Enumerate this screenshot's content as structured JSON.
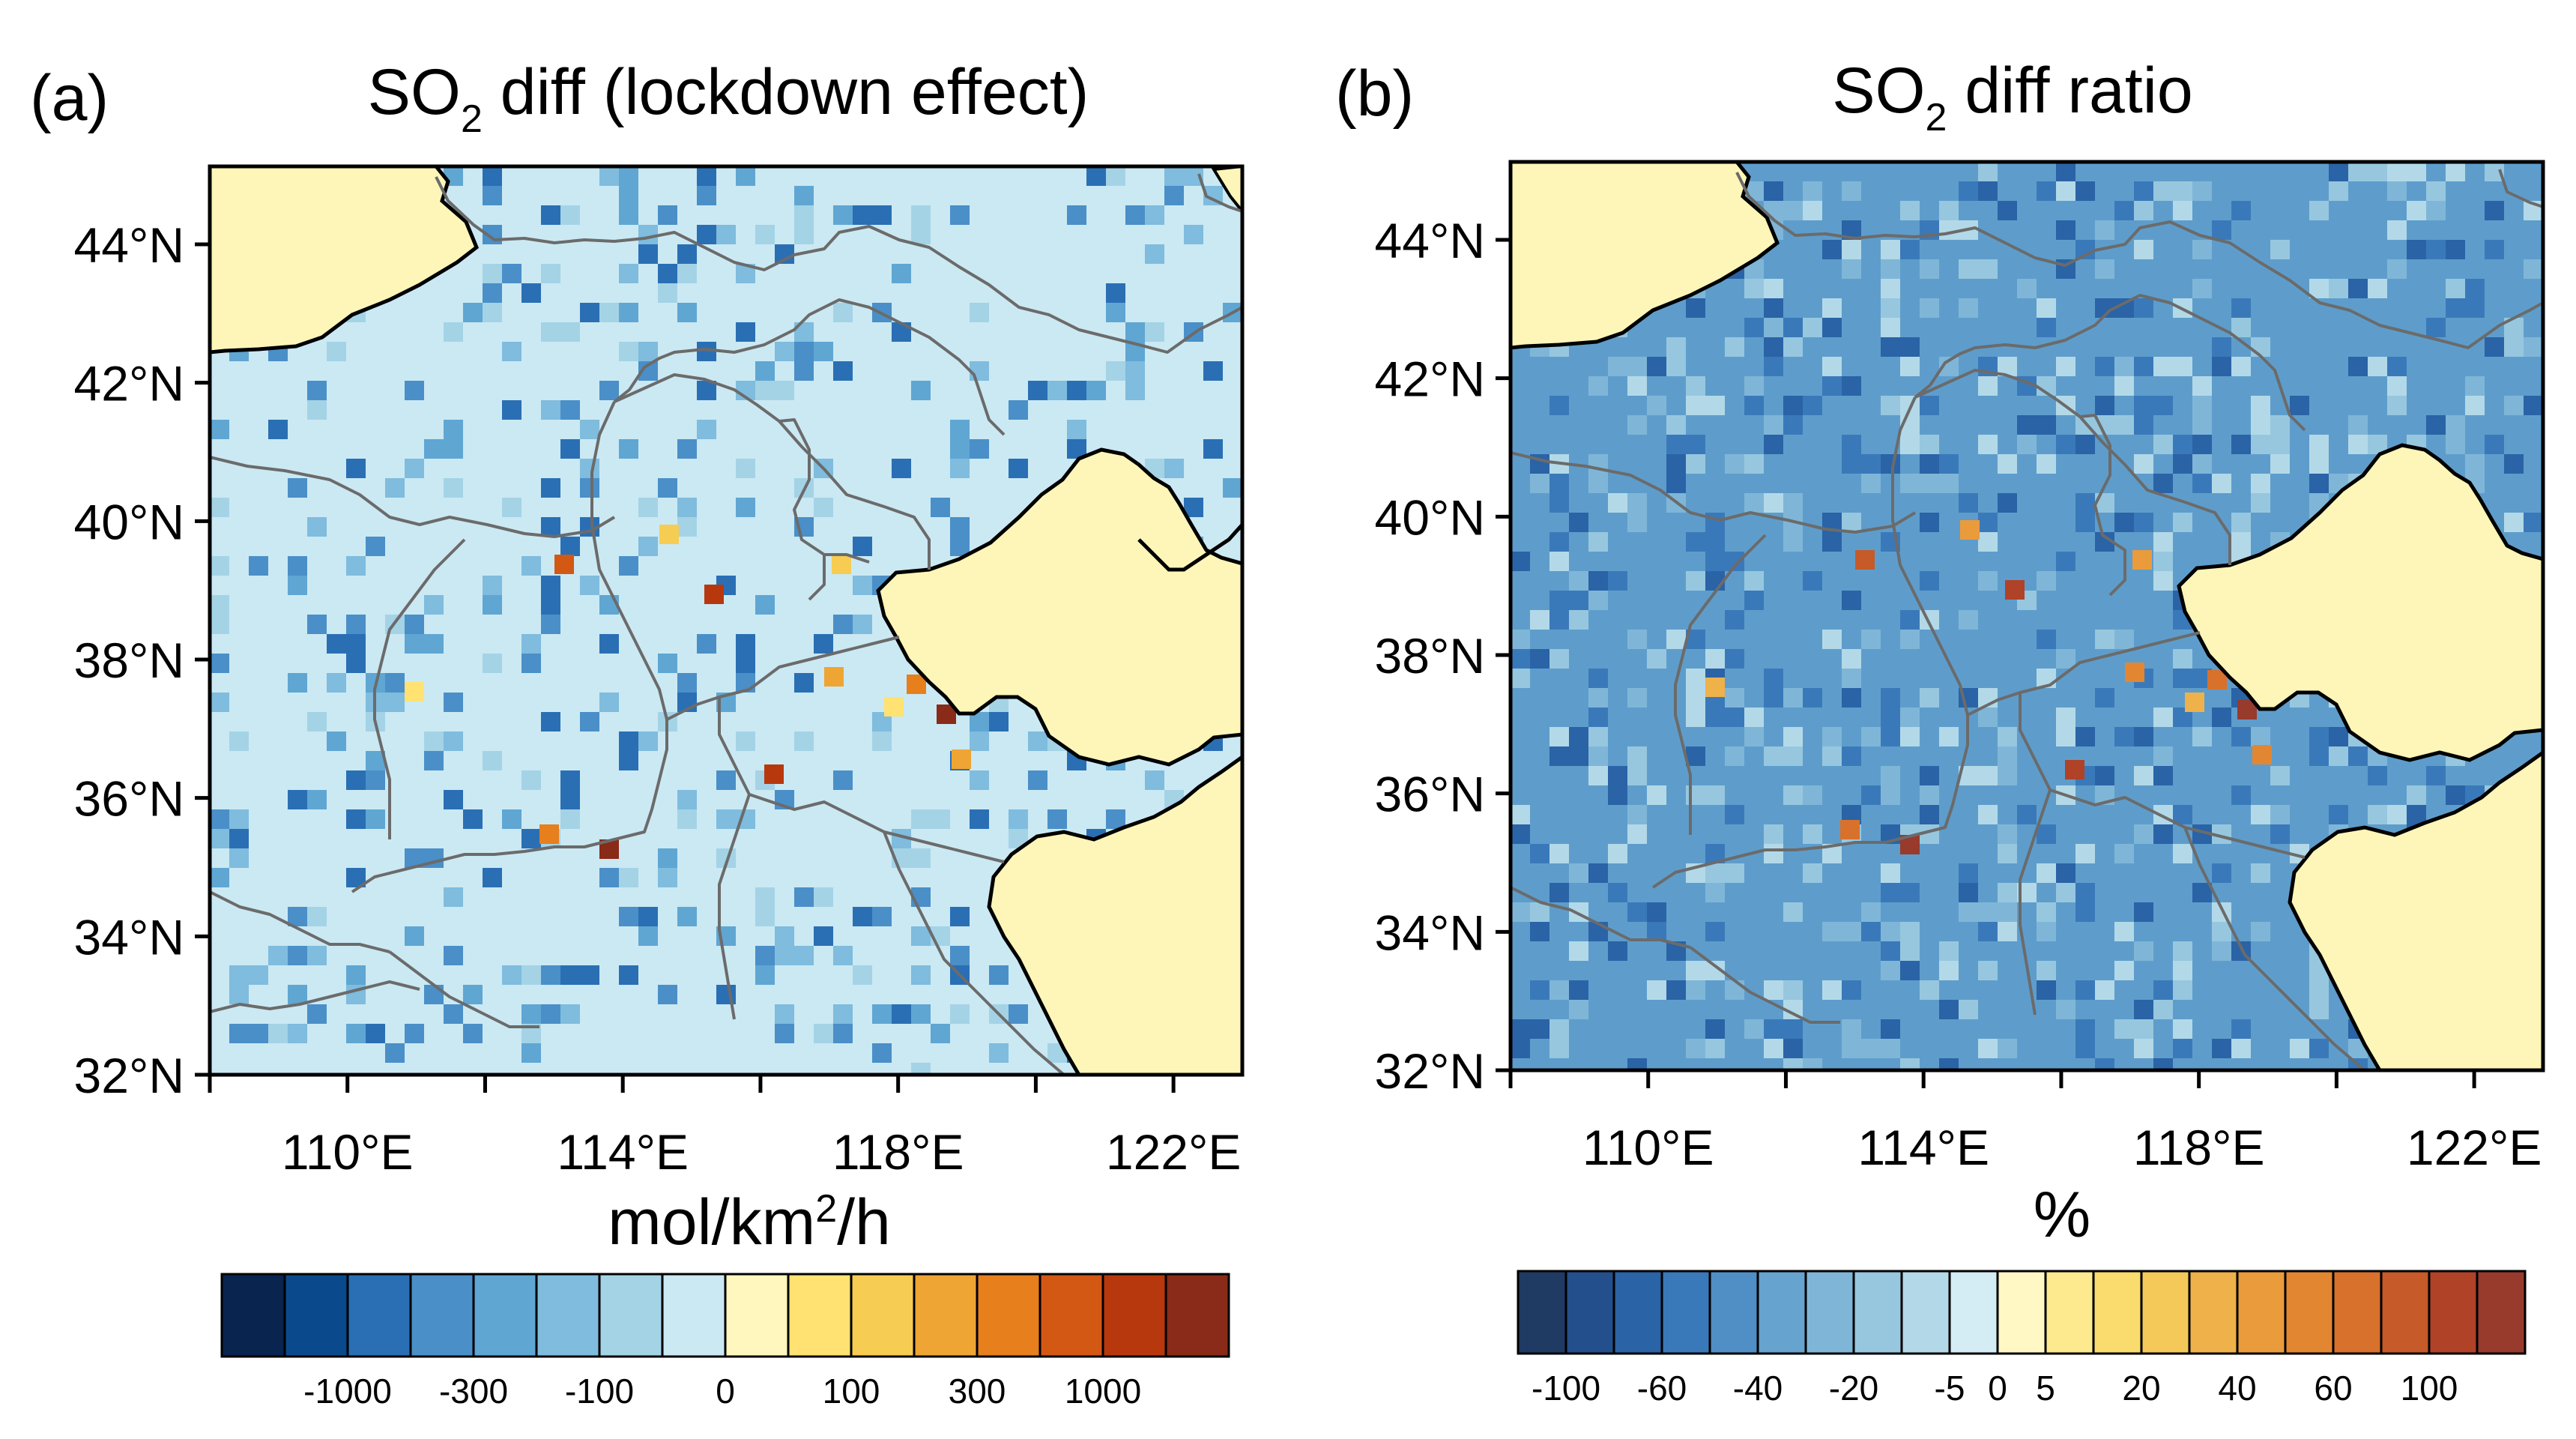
{
  "panels": [
    {
      "id": "a",
      "label": "(a)",
      "title_main": "SO",
      "title_sub": "2",
      "title_rest": " diff (lockdown effect)",
      "unit_main": "mol/km",
      "unit_sup": "2",
      "unit_rest": "/h",
      "colorbar_colors": [
        "#08244f",
        "#0a4a8c",
        "#2a6fb4",
        "#4a8fc8",
        "#5fa6d3",
        "#7fbcde",
        "#a4d3e6",
        "#cbe9f3",
        "#fff7bd",
        "#ffe272",
        "#f6cc52",
        "#efa534",
        "#e67f1c",
        "#d35814",
        "#b8380d",
        "#8a2a18"
      ],
      "colorbar_labels": [
        "-1000",
        "-300",
        "-100",
        "0",
        "100",
        "300",
        "1000"
      ],
      "map_background": "#cbe9f3",
      "anomaly_cells": [
        "#2a6fb4",
        "#4a8fc8",
        "#5fa6d3",
        "#7fbcde",
        "#a4d3e6"
      ]
    },
    {
      "id": "b",
      "label": "(b)",
      "title_main": "SO",
      "title_sub": "2",
      "title_rest": " diff ratio",
      "unit_main": "%",
      "unit_sup": "",
      "unit_rest": "",
      "colorbar_colors": [
        "#1f3a63",
        "#234f8c",
        "#2a63a6",
        "#3a79b9",
        "#4f8fc6",
        "#66a3cf",
        "#7fb6d8",
        "#97c7df",
        "#b3d9e8",
        "#d4ecf3",
        "#fff8c4",
        "#fde98e",
        "#f9db6e",
        "#f4c95a",
        "#efb14a",
        "#ea9b3c",
        "#e38632",
        "#d8712c",
        "#c65a28",
        "#b04228",
        "#983a2c"
      ],
      "colorbar_labels": [
        "-100",
        "-60",
        "-40",
        "-20",
        "-5",
        "0",
        "5",
        "20",
        "40",
        "60",
        "100"
      ],
      "map_background": "#5e9dcb",
      "anomaly_cells": [
        "#2a63a6",
        "#3a79b9",
        "#7fb6d8",
        "#97c7df",
        "#b3d9e8"
      ]
    }
  ],
  "axes": {
    "lat_labels": [
      "44°N",
      "42°N",
      "40°N",
      "38°N",
      "36°N",
      "34°N",
      "32°N"
    ],
    "lon_labels": [
      "110°E",
      "114°E",
      "118°E",
      "122°E"
    ]
  },
  "colors": {
    "land_outside": "#fdf6b8",
    "coast": "#000000",
    "province_border": "#6b6b6b"
  }
}
